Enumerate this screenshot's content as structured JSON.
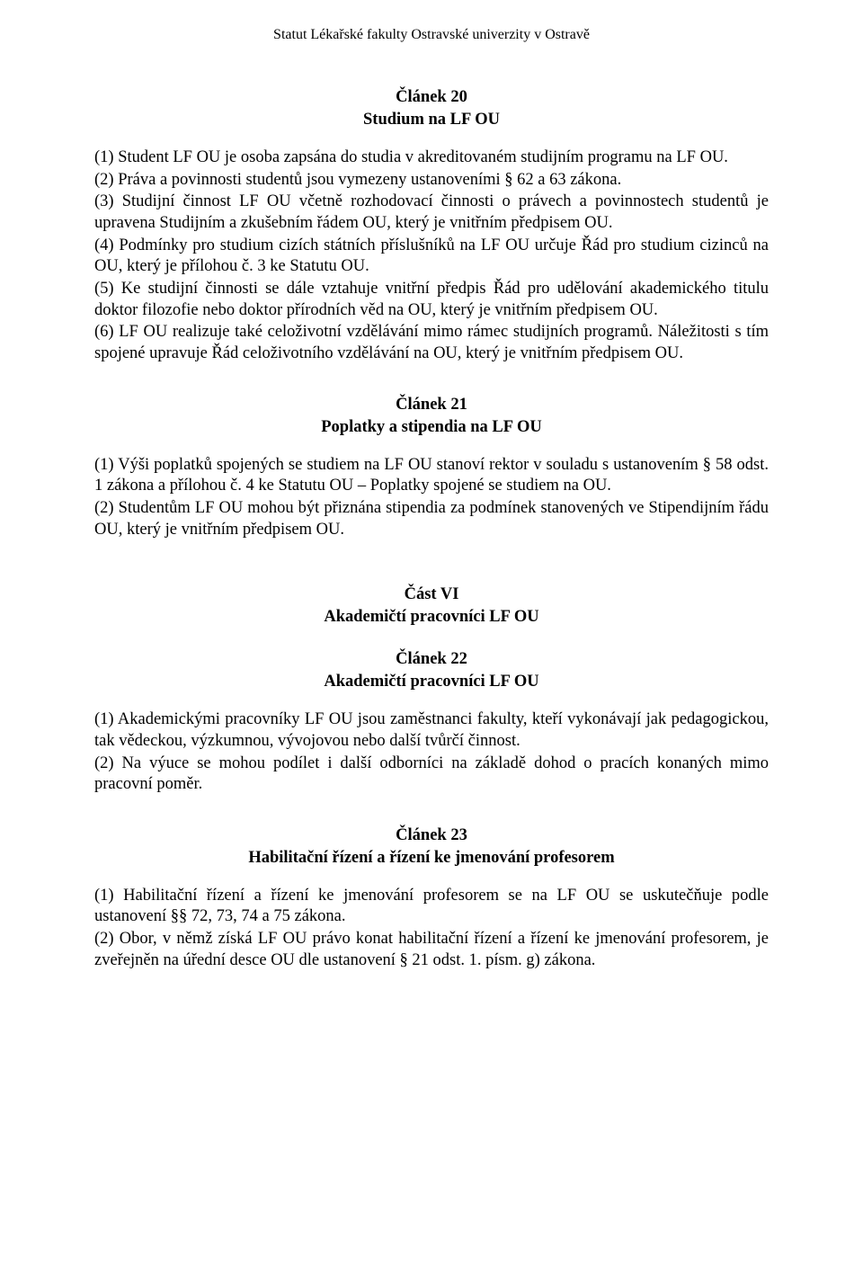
{
  "header": "Statut Lékařské fakulty Ostravské univerzity v Ostravě",
  "article20": {
    "num": "Článek 20",
    "title": "Studium na LF OU",
    "paras": [
      "(1) Student LF OU je osoba zapsána do studia v akreditovaném studijním programu na LF OU.",
      "(2) Práva a povinnosti studentů jsou vymezeny ustanoveními § 62 a 63 zákona.",
      "(3) Studijní činnost LF OU včetně rozhodovací činnosti o právech a povinnostech studentů je upravena Studijním a zkušebním řádem OU, který je vnitřním předpisem OU.",
      "(4) Podmínky pro studium cizích státních příslušníků na LF OU určuje Řád pro studium cizinců na OU, který je přílohou č. 3 ke Statutu OU.",
      "(5) Ke studijní činnosti se dále vztahuje vnitřní předpis Řád pro udělování akademického titulu doktor filozofie nebo doktor přírodních věd na OU, který je vnitřním předpisem OU.",
      "(6) LF OU realizuje také celoživotní vzdělávání mimo rámec studijních programů. Náležitosti s tím spojené upravuje Řád celoživotního vzdělávání na OU, který je vnitřním předpisem OU."
    ]
  },
  "article21": {
    "num": "Článek 21",
    "title": "Poplatky a stipendia na LF OU",
    "paras": [
      "(1) Výši poplatků spojených se studiem na LF OU stanoví rektor v souladu s ustanovením § 58 odst. 1 zákona a přílohou č. 4 ke Statutu OU – Poplatky spojené se studiem na OU.",
      "(2) Studentům LF OU mohou být přiznána stipendia za podmínek stanovených ve Stipendijním řádu OU, který je vnitřním předpisem OU."
    ]
  },
  "part6": {
    "num": "Část VI",
    "title": "Akademičtí pracovníci LF OU"
  },
  "article22": {
    "num": "Článek 22",
    "title": "Akademičtí pracovníci LF OU",
    "paras": [
      "(1) Akademickými pracovníky LF OU jsou zaměstnanci fakulty, kteří vykonávají jak pedagogickou, tak vědeckou, výzkumnou, vývojovou nebo další tvůrčí činnost.",
      "(2) Na výuce se mohou podílet i další odborníci na základě dohod o pracích konaných mimo pracovní poměr."
    ]
  },
  "article23": {
    "num": "Článek 23",
    "title": "Habilitační řízení a řízení ke jmenování profesorem",
    "paras": [
      "(1) Habilitační řízení a řízení ke jmenování profesorem se na LF OU se uskutečňuje podle ustanovení §§ 72, 73, 74 a 75 zákona.",
      "(2) Obor, v němž získá LF OU právo konat habilitační řízení a řízení ke jmenování profesorem, je zveřejněn na úřední desce OU dle ustanovení § 21 odst. 1. písm. g) zákona."
    ]
  }
}
